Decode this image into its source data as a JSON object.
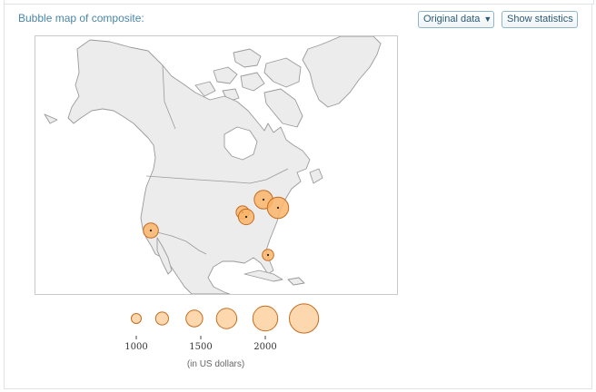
{
  "panel": {
    "title": "Bubble map of composite:"
  },
  "toolbar": {
    "data_select_label": "Original data",
    "data_select_caret": "▼",
    "stats_button_label": "Show statistics"
  },
  "map": {
    "land_color": "#ececec",
    "border_color": "#9a9a9a",
    "water_color": "#ffffff",
    "bubble_fill": "#fbb56a",
    "bubble_stroke": "#c46c20",
    "bubbles": [
      {
        "name": "california",
        "value": 1550
      },
      {
        "name": "great-lakes-east",
        "value": 1780
      },
      {
        "name": "mid-atlantic",
        "value": 1960
      },
      {
        "name": "ohio-valley",
        "value": 1400
      },
      {
        "name": "tennessee",
        "value": 1580
      },
      {
        "name": "florida",
        "value": 1300
      }
    ]
  },
  "legend": {
    "sizes": [
      1000,
      1200,
      1450,
      1700,
      2000,
      2300
    ],
    "ticks": [
      "1000",
      "1500",
      "2000"
    ],
    "units": "(in US dollars)"
  }
}
